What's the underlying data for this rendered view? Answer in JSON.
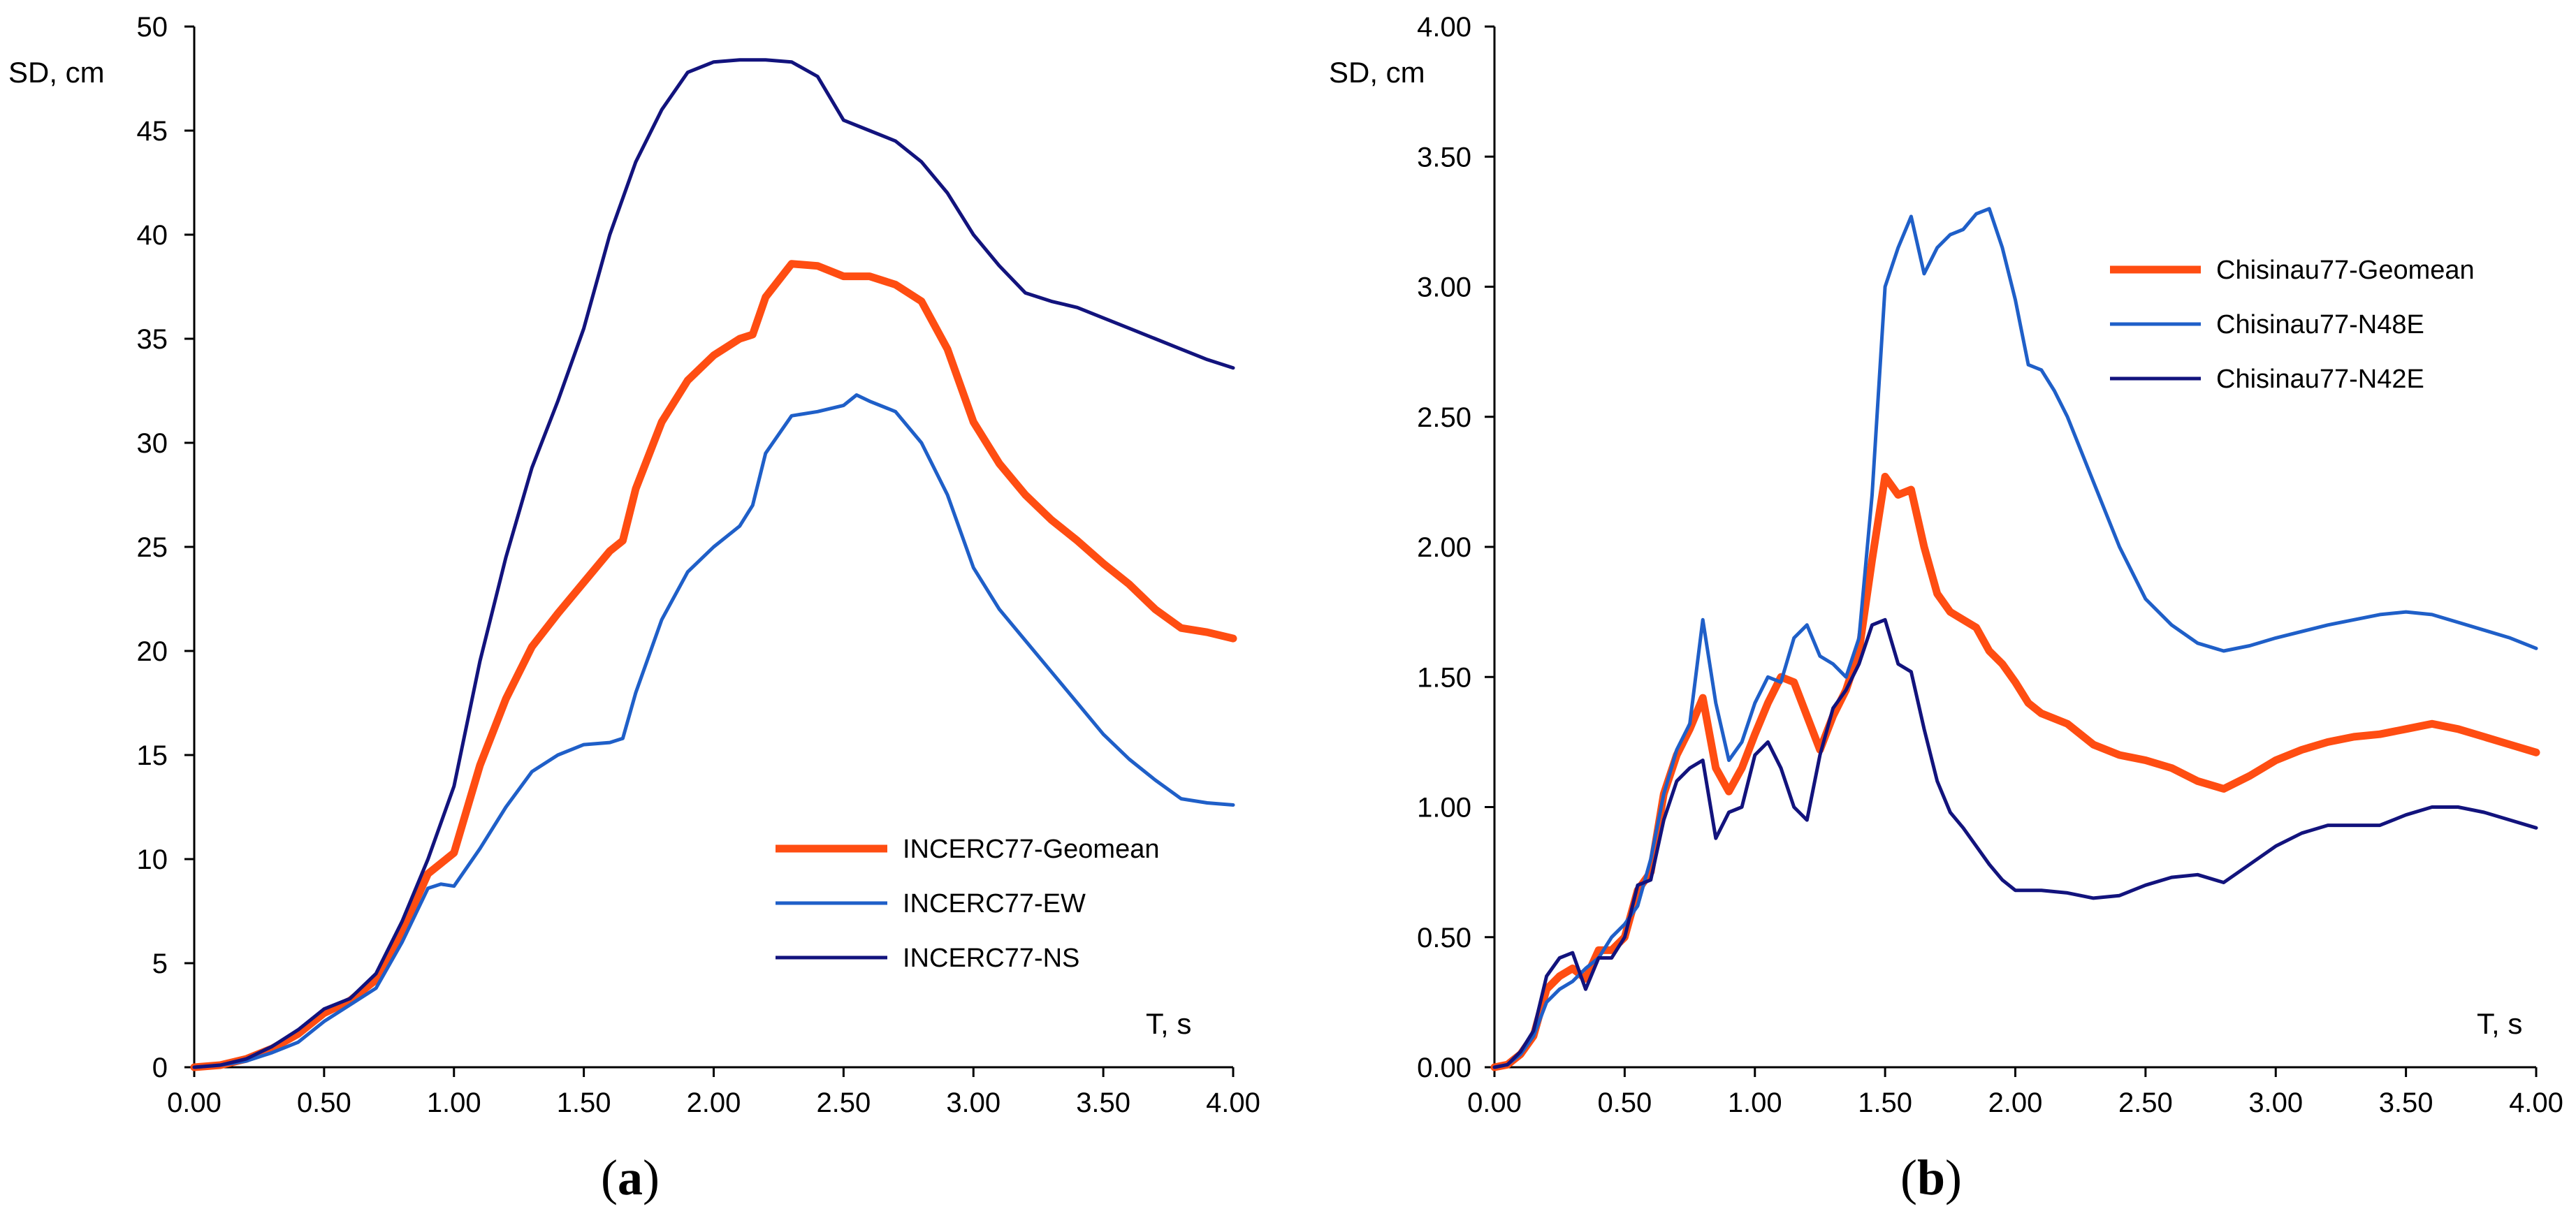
{
  "colors": {
    "geomean": "#ff4d12",
    "component1": "#1f5fc8",
    "component2": "#12137d",
    "axis": "#000000"
  },
  "chart_data": [
    {
      "type": "line",
      "panel_label": "a",
      "xlabel": "T, s",
      "ylabel": "SD, cm",
      "xlim": [
        0,
        4
      ],
      "ylim": [
        0,
        50
      ],
      "x_ticks": [
        0,
        0.5,
        1,
        1.5,
        2,
        2.5,
        3,
        3.5,
        4
      ],
      "x_tick_labels": [
        "0.00",
        "0.50",
        "1.00",
        "1.50",
        "2.00",
        "2.50",
        "3.00",
        "3.50",
        "4.00"
      ],
      "y_ticks": [
        0,
        5,
        10,
        15,
        20,
        25,
        30,
        35,
        40,
        45,
        50
      ],
      "y_tick_labels": [
        "0",
        "5",
        "10",
        "15",
        "20",
        "25",
        "30",
        "35",
        "40",
        "45",
        "50"
      ],
      "legend_position": "bottom-right",
      "series": [
        {
          "name": "INCERC77-Geomean",
          "color_key": "geomean",
          "width": "thick",
          "x": [
            0,
            0.1,
            0.2,
            0.3,
            0.4,
            0.5,
            0.6,
            0.7,
            0.8,
            0.9,
            1.0,
            1.1,
            1.2,
            1.3,
            1.4,
            1.5,
            1.6,
            1.65,
            1.7,
            1.8,
            1.9,
            2.0,
            2.1,
            2.15,
            2.2,
            2.3,
            2.4,
            2.5,
            2.6,
            2.7,
            2.8,
            2.9,
            3.0,
            3.1,
            3.2,
            3.3,
            3.4,
            3.5,
            3.6,
            3.7,
            3.8,
            3.9,
            4.0
          ],
          "y": [
            0,
            0.1,
            0.4,
            0.9,
            1.6,
            2.6,
            3.2,
            4.2,
            6.5,
            9.3,
            10.3,
            14.5,
            17.7,
            20.2,
            21.8,
            23.3,
            24.8,
            25.3,
            27.8,
            31.0,
            33.0,
            34.2,
            35.0,
            35.2,
            37.0,
            38.6,
            38.5,
            38.0,
            38.0,
            37.6,
            36.8,
            34.5,
            31.0,
            29.0,
            27.5,
            26.3,
            25.3,
            24.2,
            23.2,
            22.0,
            21.1,
            20.9,
            20.6
          ]
        },
        {
          "name": "INCERC77-EW",
          "color_key": "component1",
          "width": "thin",
          "x": [
            0,
            0.1,
            0.2,
            0.3,
            0.4,
            0.5,
            0.6,
            0.7,
            0.8,
            0.9,
            0.95,
            1.0,
            1.1,
            1.2,
            1.3,
            1.4,
            1.5,
            1.6,
            1.65,
            1.7,
            1.8,
            1.9,
            2.0,
            2.1,
            2.15,
            2.2,
            2.3,
            2.4,
            2.5,
            2.55,
            2.6,
            2.7,
            2.8,
            2.9,
            3.0,
            3.1,
            3.2,
            3.3,
            3.4,
            3.5,
            3.6,
            3.7,
            3.8,
            3.9,
            4.0
          ],
          "y": [
            0,
            0.1,
            0.3,
            0.7,
            1.2,
            2.2,
            3.0,
            3.8,
            6.0,
            8.6,
            8.8,
            8.7,
            10.5,
            12.5,
            14.2,
            15.0,
            15.5,
            15.6,
            15.8,
            18.0,
            21.5,
            23.8,
            25.0,
            26.0,
            27.0,
            29.5,
            31.3,
            31.5,
            31.8,
            32.3,
            32.0,
            31.5,
            30.0,
            27.5,
            24.0,
            22.0,
            20.5,
            19.0,
            17.5,
            16.0,
            14.8,
            13.8,
            12.9,
            12.7,
            12.6
          ]
        },
        {
          "name": "INCERC77-NS",
          "color_key": "component2",
          "width": "thin",
          "x": [
            0,
            0.1,
            0.2,
            0.3,
            0.4,
            0.5,
            0.6,
            0.7,
            0.8,
            0.9,
            1.0,
            1.1,
            1.2,
            1.3,
            1.4,
            1.5,
            1.6,
            1.7,
            1.8,
            1.9,
            2.0,
            2.1,
            2.2,
            2.3,
            2.4,
            2.5,
            2.6,
            2.7,
            2.8,
            2.9,
            3.0,
            3.1,
            3.2,
            3.25,
            3.3,
            3.4,
            3.5,
            3.6,
            3.7,
            3.8,
            3.9,
            4.0
          ],
          "y": [
            0,
            0.1,
            0.4,
            1.0,
            1.8,
            2.8,
            3.3,
            4.5,
            7.0,
            10.0,
            13.5,
            19.5,
            24.5,
            28.8,
            32.0,
            35.5,
            40.0,
            43.5,
            46.0,
            47.8,
            48.3,
            48.4,
            48.4,
            48.3,
            47.6,
            45.5,
            45.0,
            44.5,
            43.5,
            42.0,
            40.0,
            38.5,
            37.2,
            37.0,
            36.8,
            36.5,
            36.0,
            35.5,
            35.0,
            34.5,
            34.0,
            33.6
          ]
        }
      ]
    },
    {
      "type": "line",
      "panel_label": "b",
      "xlabel": "T, s",
      "ylabel": "SD, cm",
      "xlim": [
        0,
        4
      ],
      "ylim": [
        0,
        4
      ],
      "x_ticks": [
        0,
        0.5,
        1,
        1.5,
        2,
        2.5,
        3,
        3.5,
        4
      ],
      "x_tick_labels": [
        "0.00",
        "0.50",
        "1.00",
        "1.50",
        "2.00",
        "2.50",
        "3.00",
        "3.50",
        "4.00"
      ],
      "y_ticks": [
        0,
        0.5,
        1,
        1.5,
        2,
        2.5,
        3,
        3.5,
        4
      ],
      "y_tick_labels": [
        "0.00",
        "0.50",
        "1.00",
        "1.50",
        "2.00",
        "2.50",
        "3.00",
        "3.50",
        "4.00"
      ],
      "legend_position": "top-right",
      "series": [
        {
          "name": "Chisinau77-Geomean",
          "color_key": "geomean",
          "width": "thick",
          "x": [
            0,
            0.05,
            0.1,
            0.15,
            0.2,
            0.25,
            0.3,
            0.35,
            0.4,
            0.45,
            0.5,
            0.55,
            0.6,
            0.65,
            0.7,
            0.75,
            0.8,
            0.85,
            0.9,
            0.95,
            1.0,
            1.05,
            1.1,
            1.15,
            1.2,
            1.25,
            1.3,
            1.35,
            1.4,
            1.45,
            1.5,
            1.55,
            1.6,
            1.65,
            1.7,
            1.75,
            1.8,
            1.85,
            1.9,
            1.95,
            2.0,
            2.05,
            2.1,
            2.2,
            2.3,
            2.4,
            2.5,
            2.6,
            2.7,
            2.8,
            2.9,
            3.0,
            3.1,
            3.2,
            3.3,
            3.4,
            3.5,
            3.6,
            3.7,
            3.8,
            3.9,
            4.0
          ],
          "y": [
            0,
            0.01,
            0.05,
            0.12,
            0.3,
            0.35,
            0.38,
            0.34,
            0.45,
            0.45,
            0.5,
            0.68,
            0.75,
            1.05,
            1.2,
            1.3,
            1.42,
            1.15,
            1.06,
            1.15,
            1.28,
            1.4,
            1.5,
            1.48,
            1.35,
            1.22,
            1.35,
            1.45,
            1.6,
            1.95,
            2.27,
            2.2,
            2.22,
            2.0,
            1.82,
            1.75,
            1.72,
            1.69,
            1.6,
            1.55,
            1.48,
            1.4,
            1.36,
            1.32,
            1.24,
            1.2,
            1.18,
            1.15,
            1.1,
            1.07,
            1.12,
            1.18,
            1.22,
            1.25,
            1.27,
            1.28,
            1.3,
            1.32,
            1.3,
            1.27,
            1.24,
            1.21
          ]
        },
        {
          "name": "Chisinau77-N48E",
          "color_key": "component1",
          "width": "thin",
          "x": [
            0,
            0.05,
            0.1,
            0.15,
            0.2,
            0.25,
            0.3,
            0.35,
            0.4,
            0.45,
            0.5,
            0.55,
            0.6,
            0.65,
            0.7,
            0.75,
            0.8,
            0.85,
            0.9,
            0.95,
            1.0,
            1.05,
            1.1,
            1.15,
            1.2,
            1.25,
            1.3,
            1.35,
            1.4,
            1.45,
            1.5,
            1.55,
            1.6,
            1.65,
            1.7,
            1.75,
            1.8,
            1.85,
            1.9,
            1.95,
            2.0,
            2.05,
            2.1,
            2.15,
            2.2,
            2.3,
            2.4,
            2.5,
            2.6,
            2.7,
            2.8,
            2.9,
            3.0,
            3.2,
            3.4,
            3.5,
            3.6,
            3.7,
            3.8,
            3.9,
            4.0
          ],
          "y": [
            0,
            0.01,
            0.05,
            0.12,
            0.25,
            0.3,
            0.33,
            0.38,
            0.42,
            0.5,
            0.55,
            0.62,
            0.8,
            1.05,
            1.22,
            1.32,
            1.72,
            1.4,
            1.18,
            1.25,
            1.4,
            1.5,
            1.48,
            1.65,
            1.7,
            1.58,
            1.55,
            1.5,
            1.65,
            2.2,
            3.0,
            3.15,
            3.27,
            3.05,
            3.15,
            3.2,
            3.22,
            3.28,
            3.3,
            3.15,
            2.95,
            2.7,
            2.68,
            2.6,
            2.5,
            2.25,
            2.0,
            1.8,
            1.7,
            1.63,
            1.6,
            1.62,
            1.65,
            1.7,
            1.74,
            1.75,
            1.74,
            1.71,
            1.68,
            1.65,
            1.61
          ]
        },
        {
          "name": "Chisinau77-N42E",
          "color_key": "component2",
          "width": "thin",
          "x": [
            0,
            0.05,
            0.1,
            0.15,
            0.2,
            0.25,
            0.3,
            0.35,
            0.4,
            0.45,
            0.5,
            0.55,
            0.6,
            0.65,
            0.7,
            0.75,
            0.8,
            0.85,
            0.9,
            0.95,
            1.0,
            1.05,
            1.1,
            1.15,
            1.2,
            1.25,
            1.3,
            1.35,
            1.4,
            1.45,
            1.5,
            1.55,
            1.6,
            1.65,
            1.7,
            1.75,
            1.8,
            1.85,
            1.9,
            1.95,
            2.0,
            2.1,
            2.2,
            2.3,
            2.4,
            2.5,
            2.6,
            2.7,
            2.8,
            2.9,
            3.0,
            3.1,
            3.2,
            3.3,
            3.4,
            3.5,
            3.6,
            3.7,
            3.8,
            3.9,
            4.0
          ],
          "y": [
            0,
            0.01,
            0.06,
            0.14,
            0.35,
            0.42,
            0.44,
            0.3,
            0.42,
            0.42,
            0.5,
            0.7,
            0.72,
            0.95,
            1.1,
            1.15,
            1.18,
            0.88,
            0.98,
            1.0,
            1.2,
            1.25,
            1.15,
            1.0,
            0.95,
            1.2,
            1.38,
            1.45,
            1.55,
            1.7,
            1.72,
            1.55,
            1.52,
            1.3,
            1.1,
            0.98,
            0.92,
            0.85,
            0.78,
            0.72,
            0.68,
            0.68,
            0.67,
            0.65,
            0.66,
            0.7,
            0.73,
            0.74,
            0.71,
            0.78,
            0.85,
            0.9,
            0.93,
            0.93,
            0.93,
            0.97,
            1.0,
            1.0,
            0.98,
            0.95,
            0.92
          ]
        }
      ]
    }
  ]
}
